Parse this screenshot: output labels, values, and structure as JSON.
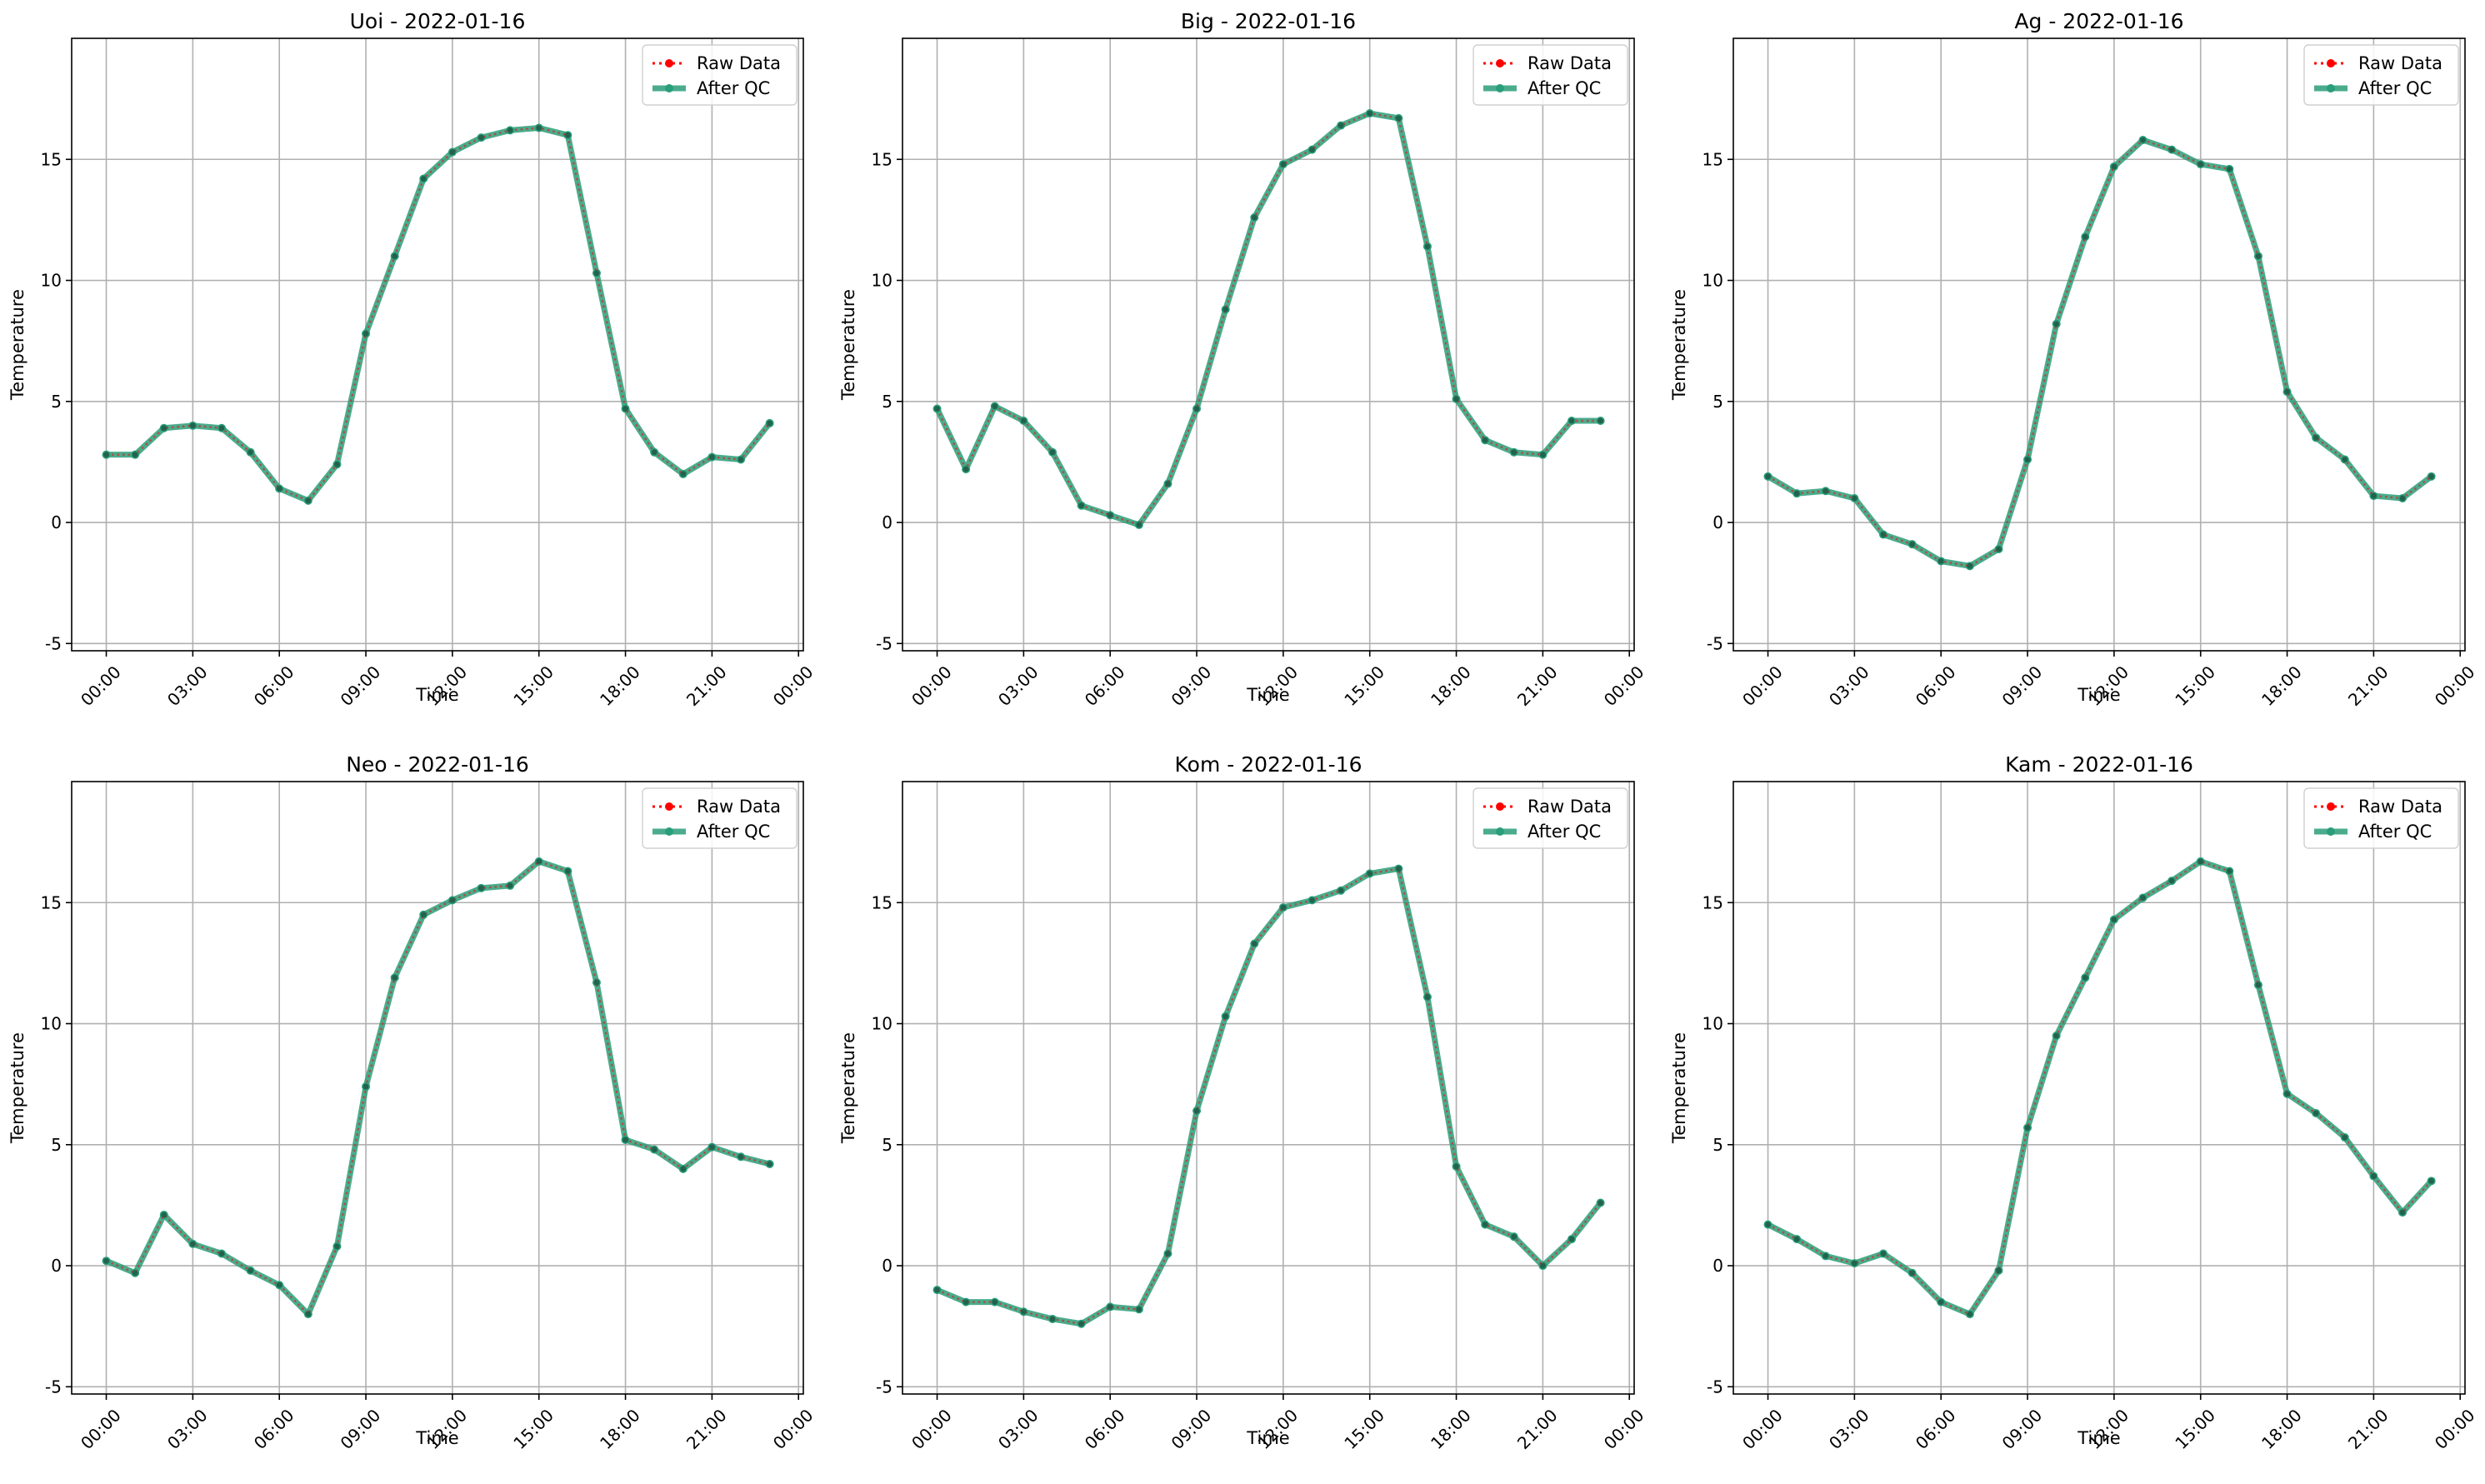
{
  "figure": {
    "background": "#ffffff"
  },
  "colors": {
    "raw": "#ff0000",
    "qc": "#2a9d79",
    "grid": "#b0b0b0",
    "axes": "#000000"
  },
  "legend": {
    "placement": "upper right",
    "raw_label": "Raw Data",
    "qc_label": "After QC"
  },
  "chart_data": [
    {
      "type": "line",
      "title": "Uoi - 2022-01-16",
      "xlabel": "Time",
      "ylabel": "Temperature",
      "xlim": [
        "2022-01-15T22:48",
        "2022-01-17T00:10"
      ],
      "ylim": [
        -5.3,
        20
      ],
      "xticks": [
        "00:00",
        "03:00",
        "06:00",
        "09:00",
        "12:00",
        "15:00",
        "18:00",
        "21:00",
        "00:00"
      ],
      "yticks": [
        -5,
        0,
        5,
        10,
        15
      ],
      "grid": true,
      "legend": "top-right",
      "x": [
        "00:00",
        "01:00",
        "02:00",
        "03:00",
        "04:00",
        "05:00",
        "06:00",
        "07:00",
        "08:00",
        "09:00",
        "10:00",
        "11:00",
        "12:00",
        "13:00",
        "14:00",
        "15:00",
        "16:00",
        "17:00",
        "18:00",
        "19:00",
        "20:00",
        "21:00",
        "22:00",
        "23:00"
      ],
      "series": [
        {
          "name": "Raw Data",
          "values": [
            2.8,
            2.8,
            3.9,
            4.0,
            3.9,
            2.9,
            1.4,
            0.9,
            2.4,
            7.8,
            11.0,
            14.2,
            15.3,
            15.9,
            16.2,
            16.3,
            16.0,
            10.3,
            4.7,
            2.9,
            2.0,
            2.7,
            2.6,
            4.1
          ]
        },
        {
          "name": "After QC",
          "values": [
            2.8,
            2.8,
            3.9,
            4.0,
            3.9,
            2.9,
            1.4,
            0.9,
            2.4,
            7.8,
            11.0,
            14.2,
            15.3,
            15.9,
            16.2,
            16.3,
            16.0,
            10.3,
            4.7,
            2.9,
            2.0,
            2.7,
            2.6,
            4.1
          ]
        }
      ]
    },
    {
      "type": "line",
      "title": "Big - 2022-01-16",
      "xlabel": "Time",
      "ylabel": "Temperature",
      "xlim": [
        "2022-01-15T22:48",
        "2022-01-17T00:10"
      ],
      "ylim": [
        -5.3,
        20
      ],
      "xticks": [
        "00:00",
        "03:00",
        "06:00",
        "09:00",
        "12:00",
        "15:00",
        "18:00",
        "21:00",
        "00:00"
      ],
      "yticks": [
        -5,
        0,
        5,
        10,
        15
      ],
      "grid": true,
      "legend": "top-right",
      "x": [
        "00:00",
        "01:00",
        "02:00",
        "03:00",
        "04:00",
        "05:00",
        "06:00",
        "07:00",
        "08:00",
        "09:00",
        "10:00",
        "11:00",
        "12:00",
        "13:00",
        "14:00",
        "15:00",
        "16:00",
        "17:00",
        "18:00",
        "19:00",
        "20:00",
        "21:00",
        "22:00",
        "23:00"
      ],
      "series": [
        {
          "name": "Raw Data",
          "values": [
            4.7,
            2.2,
            4.8,
            4.2,
            2.9,
            0.7,
            0.3,
            -0.1,
            1.6,
            4.7,
            8.8,
            12.6,
            14.8,
            15.4,
            16.4,
            16.9,
            16.7,
            11.4,
            5.1,
            3.4,
            2.9,
            2.8,
            4.2,
            4.2
          ]
        },
        {
          "name": "After QC",
          "values": [
            4.7,
            2.2,
            4.8,
            4.2,
            2.9,
            0.7,
            0.3,
            -0.1,
            1.6,
            4.7,
            8.8,
            12.6,
            14.8,
            15.4,
            16.4,
            16.9,
            16.7,
            11.4,
            5.1,
            3.4,
            2.9,
            2.8,
            4.2,
            4.2
          ]
        }
      ]
    },
    {
      "type": "line",
      "title": "Ag - 2022-01-16",
      "xlabel": "Time",
      "ylabel": "Temperature",
      "xlim": [
        "2022-01-15T22:48",
        "2022-01-17T00:10"
      ],
      "ylim": [
        -5.3,
        20
      ],
      "xticks": [
        "00:00",
        "03:00",
        "06:00",
        "09:00",
        "12:00",
        "15:00",
        "18:00",
        "21:00",
        "00:00"
      ],
      "yticks": [
        -5,
        0,
        5,
        10,
        15
      ],
      "grid": true,
      "legend": "top-right",
      "x": [
        "00:00",
        "01:00",
        "02:00",
        "03:00",
        "04:00",
        "05:00",
        "06:00",
        "07:00",
        "08:00",
        "09:00",
        "10:00",
        "11:00",
        "12:00",
        "13:00",
        "14:00",
        "15:00",
        "16:00",
        "17:00",
        "18:00",
        "19:00",
        "20:00",
        "21:00",
        "22:00",
        "23:00"
      ],
      "series": [
        {
          "name": "Raw Data",
          "values": [
            1.9,
            1.2,
            1.3,
            1.0,
            -0.5,
            -0.9,
            -1.6,
            -1.8,
            -1.1,
            2.6,
            8.2,
            11.8,
            14.7,
            15.8,
            15.4,
            14.8,
            14.6,
            11.0,
            5.4,
            3.5,
            2.6,
            1.1,
            1.0,
            1.9
          ]
        },
        {
          "name": "After QC",
          "values": [
            1.9,
            1.2,
            1.3,
            1.0,
            -0.5,
            -0.9,
            -1.6,
            -1.8,
            -1.1,
            2.6,
            8.2,
            11.8,
            14.7,
            15.8,
            15.4,
            14.8,
            14.6,
            11.0,
            5.4,
            3.5,
            2.6,
            1.1,
            1.0,
            1.9
          ]
        }
      ]
    },
    {
      "type": "line",
      "title": "Neo - 2022-01-16",
      "xlabel": "Time",
      "ylabel": "Temperature",
      "xlim": [
        "2022-01-15T22:48",
        "2022-01-17T00:10"
      ],
      "ylim": [
        -5.3,
        20
      ],
      "xticks": [
        "00:00",
        "03:00",
        "06:00",
        "09:00",
        "12:00",
        "15:00",
        "18:00",
        "21:00",
        "00:00"
      ],
      "yticks": [
        -5,
        0,
        5,
        10,
        15
      ],
      "grid": true,
      "legend": "top-right",
      "x": [
        "00:00",
        "01:00",
        "02:00",
        "03:00",
        "04:00",
        "05:00",
        "06:00",
        "07:00",
        "08:00",
        "09:00",
        "10:00",
        "11:00",
        "12:00",
        "13:00",
        "14:00",
        "15:00",
        "16:00",
        "17:00",
        "18:00",
        "19:00",
        "20:00",
        "21:00",
        "22:00",
        "23:00"
      ],
      "series": [
        {
          "name": "Raw Data",
          "values": [
            0.2,
            -0.3,
            2.1,
            0.9,
            0.5,
            -0.2,
            -0.8,
            -2.0,
            0.8,
            7.4,
            11.9,
            14.5,
            15.1,
            15.6,
            15.7,
            16.7,
            16.3,
            11.7,
            5.2,
            4.8,
            4.0,
            4.9,
            4.5,
            4.2
          ]
        },
        {
          "name": "After QC",
          "values": [
            0.2,
            -0.3,
            2.1,
            0.9,
            0.5,
            -0.2,
            -0.8,
            -2.0,
            0.8,
            7.4,
            11.9,
            14.5,
            15.1,
            15.6,
            15.7,
            16.7,
            16.3,
            11.7,
            5.2,
            4.8,
            4.0,
            4.9,
            4.5,
            4.2
          ]
        }
      ]
    },
    {
      "type": "line",
      "title": "Kom - 2022-01-16",
      "xlabel": "Time",
      "ylabel": "Temperature",
      "xlim": [
        "2022-01-15T22:48",
        "2022-01-17T00:10"
      ],
      "ylim": [
        -5.3,
        20
      ],
      "xticks": [
        "00:00",
        "03:00",
        "06:00",
        "09:00",
        "12:00",
        "15:00",
        "18:00",
        "21:00",
        "00:00"
      ],
      "yticks": [
        -5,
        0,
        5,
        10,
        15
      ],
      "grid": true,
      "legend": "top-right",
      "x": [
        "00:00",
        "01:00",
        "02:00",
        "03:00",
        "04:00",
        "05:00",
        "06:00",
        "07:00",
        "08:00",
        "09:00",
        "10:00",
        "11:00",
        "12:00",
        "13:00",
        "14:00",
        "15:00",
        "16:00",
        "17:00",
        "18:00",
        "19:00",
        "20:00",
        "21:00",
        "22:00",
        "23:00"
      ],
      "series": [
        {
          "name": "Raw Data",
          "values": [
            -1.0,
            -1.5,
            -1.5,
            -1.9,
            -2.2,
            -2.4,
            -1.7,
            -1.8,
            0.5,
            6.4,
            10.3,
            13.3,
            14.8,
            15.1,
            15.5,
            16.2,
            16.4,
            11.1,
            4.1,
            1.7,
            1.2,
            0.0,
            1.1,
            2.6
          ]
        },
        {
          "name": "After QC",
          "values": [
            -1.0,
            -1.5,
            -1.5,
            -1.9,
            -2.2,
            -2.4,
            -1.7,
            -1.8,
            0.5,
            6.4,
            10.3,
            13.3,
            14.8,
            15.1,
            15.5,
            16.2,
            16.4,
            11.1,
            4.1,
            1.7,
            1.2,
            0.0,
            1.1,
            2.6
          ]
        }
      ]
    },
    {
      "type": "line",
      "title": "Kam - 2022-01-16",
      "xlabel": "Time",
      "ylabel": "Temperature",
      "xlim": [
        "2022-01-15T22:48",
        "2022-01-17T00:10"
      ],
      "ylim": [
        -5.3,
        20
      ],
      "xticks": [
        "00:00",
        "03:00",
        "06:00",
        "09:00",
        "12:00",
        "15:00",
        "18:00",
        "21:00",
        "00:00"
      ],
      "yticks": [
        -5,
        0,
        5,
        10,
        15
      ],
      "grid": true,
      "legend": "top-right",
      "x": [
        "00:00",
        "01:00",
        "02:00",
        "03:00",
        "04:00",
        "05:00",
        "06:00",
        "07:00",
        "08:00",
        "09:00",
        "10:00",
        "11:00",
        "12:00",
        "13:00",
        "14:00",
        "15:00",
        "16:00",
        "17:00",
        "18:00",
        "19:00",
        "20:00",
        "21:00",
        "22:00",
        "23:00"
      ],
      "series": [
        {
          "name": "Raw Data",
          "values": [
            1.7,
            1.1,
            0.4,
            0.1,
            0.5,
            -0.3,
            -1.5,
            -2.0,
            -0.2,
            5.7,
            9.5,
            11.9,
            14.3,
            15.2,
            15.9,
            16.7,
            16.3,
            11.6,
            7.1,
            6.3,
            5.3,
            3.7,
            2.2,
            3.5
          ]
        },
        {
          "name": "After QC",
          "values": [
            1.7,
            1.1,
            0.4,
            0.1,
            0.5,
            -0.3,
            -1.5,
            -2.0,
            -0.2,
            5.7,
            9.5,
            11.9,
            14.3,
            15.2,
            15.9,
            16.7,
            16.3,
            11.6,
            7.1,
            6.3,
            5.3,
            3.7,
            2.2,
            3.5
          ]
        }
      ]
    }
  ]
}
